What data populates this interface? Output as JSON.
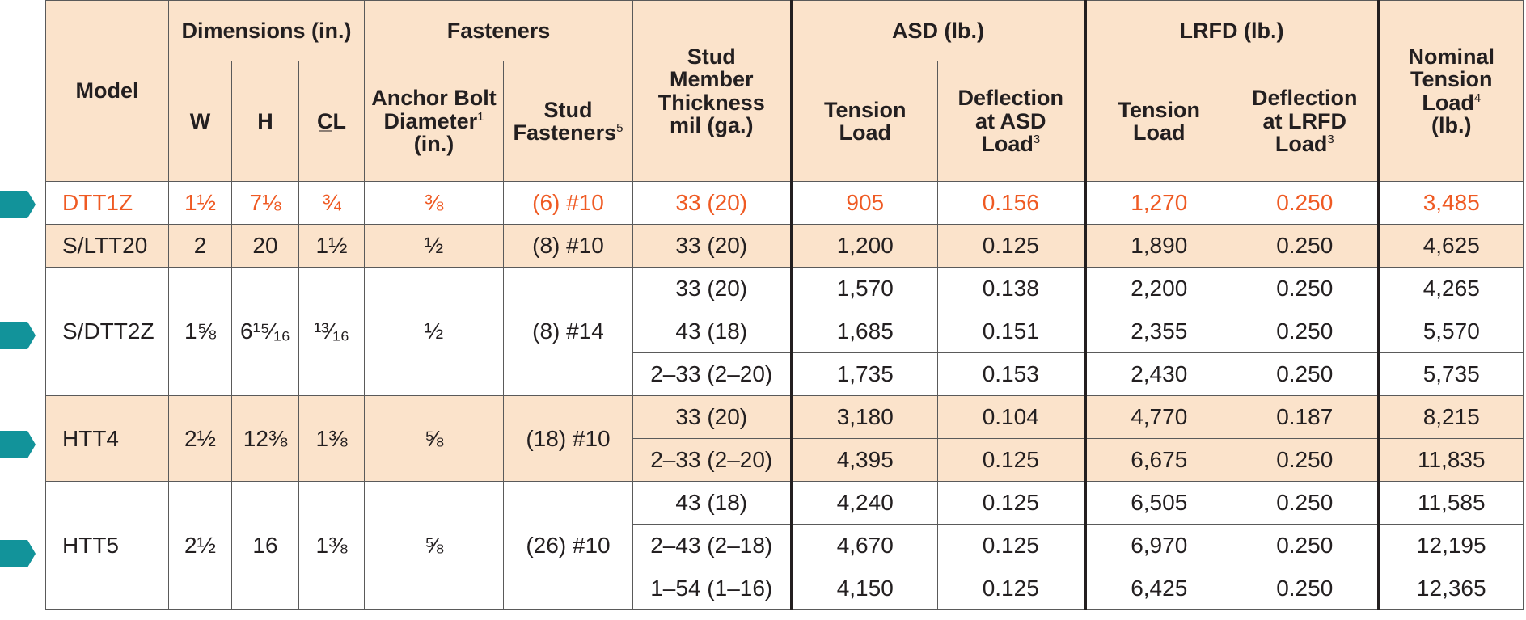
{
  "headers": {
    "model": "Model",
    "dimensions": "Dimensions (in.)",
    "w": "W",
    "h": "H",
    "cl": "C̲L",
    "fasteners": "Fasteners",
    "anchor_bolt_line1": "Anchor Bolt",
    "anchor_bolt_line2": "Diameter",
    "anchor_bolt_sup": "1",
    "anchor_bolt_line3": "(in.)",
    "stud_fasteners_line1": "Stud",
    "stud_fasteners_line2": "Fasteners",
    "stud_fasteners_sup": "5",
    "stud_thickness_line1": "Stud",
    "stud_thickness_line2": "Member",
    "stud_thickness_line3": "Thickness",
    "stud_thickness_line4": "mil (ga.)",
    "asd": "ASD (lb.)",
    "asd_tension_line1": "Tension",
    "asd_tension_line2": "Load",
    "asd_deflection_line1": "Deflection",
    "asd_deflection_line2": "at ASD",
    "asd_deflection_line3": "Load",
    "asd_deflection_sup": "3",
    "lrfd": "LRFD (lb.)",
    "lrfd_tension_line1": "Tension",
    "lrfd_tension_line2": "Load",
    "lrfd_deflection_line1": "Deflection",
    "lrfd_deflection_line2": "at LRFD",
    "lrfd_deflection_line3": "Load",
    "lrfd_deflection_sup": "3",
    "nominal_line1": "Nominal",
    "nominal_line2": "Tension",
    "nominal_line3": "Load",
    "nominal_sup": "4",
    "nominal_line4": "(lb.)"
  },
  "rows": [
    {
      "model": "DTT1Z",
      "w": "1½",
      "h": "7⅛",
      "cl": "¾",
      "anchor": "⅜",
      "stud_fasteners": "(6) #10",
      "thickness": "33 (20)",
      "asd_tension": "905",
      "asd_deflection": "0.156",
      "lrfd_tension": "1,270",
      "lrfd_deflection": "0.250",
      "nominal": "3,485"
    },
    {
      "model": "S/LTT20",
      "w": "2",
      "h": "20",
      "cl": "1½",
      "anchor": "½",
      "stud_fasteners": "(8) #10",
      "thickness": "33 (20)",
      "asd_tension": "1,200",
      "asd_deflection": "0.125",
      "lrfd_tension": "1,890",
      "lrfd_deflection": "0.250",
      "nominal": "4,625"
    },
    {
      "model": "S/DTT2Z",
      "w": "1⅝",
      "h": "6¹⁵⁄₁₆",
      "cl": "¹³⁄₁₆",
      "anchor": "½",
      "stud_fasteners": "(8) #14",
      "sub": [
        {
          "thickness": "33 (20)",
          "asd_tension": "1,570",
          "asd_deflection": "0.138",
          "lrfd_tension": "2,200",
          "lrfd_deflection": "0.250",
          "nominal": "4,265"
        },
        {
          "thickness": "43 (18)",
          "asd_tension": "1,685",
          "asd_deflection": "0.151",
          "lrfd_tension": "2,355",
          "lrfd_deflection": "0.250",
          "nominal": "5,570"
        },
        {
          "thickness": "2–33 (2–20)",
          "asd_tension": "1,735",
          "asd_deflection": "0.153",
          "lrfd_tension": "2,430",
          "lrfd_deflection": "0.250",
          "nominal": "5,735"
        }
      ]
    },
    {
      "model": "HTT4",
      "w": "2½",
      "h": "12⅜",
      "cl": "1⅜",
      "anchor": "⅝",
      "stud_fasteners": "(18) #10",
      "sub": [
        {
          "thickness": "33 (20)",
          "asd_tension": "3,180",
          "asd_deflection": "0.104",
          "lrfd_tension": "4,770",
          "lrfd_deflection": "0.187",
          "nominal": "8,215"
        },
        {
          "thickness": "2–33 (2–20)",
          "asd_tension": "4,395",
          "asd_deflection": "0.125",
          "lrfd_tension": "6,675",
          "lrfd_deflection": "0.250",
          "nominal": "11,835"
        }
      ]
    },
    {
      "model": "HTT5",
      "w": "2½",
      "h": "16",
      "cl": "1⅜",
      "anchor": "⅝",
      "stud_fasteners": "(26) #10",
      "sub": [
        {
          "thickness": "43 (18)",
          "asd_tension": "4,240",
          "asd_deflection": "0.125",
          "lrfd_tension": "6,505",
          "lrfd_deflection": "0.250",
          "nominal": "11,585"
        },
        {
          "thickness": "2–43 (2–18)",
          "asd_tension": "4,670",
          "asd_deflection": "0.125",
          "lrfd_tension": "6,970",
          "lrfd_deflection": "0.250",
          "nominal": "12,195"
        },
        {
          "thickness": "1–54 (1–16)",
          "asd_tension": "4,150",
          "asd_deflection": "0.125",
          "lrfd_tension": "6,425",
          "lrfd_deflection": "0.250",
          "nominal": "12,365"
        }
      ]
    }
  ],
  "colors": {
    "header_bg": "#fbe3cb",
    "highlight_text": "#ef5a23",
    "arrow": "#12939a",
    "border": "#5a5a5a"
  },
  "icons": {
    "row_marker": "teal-arrow-marker-icon"
  }
}
